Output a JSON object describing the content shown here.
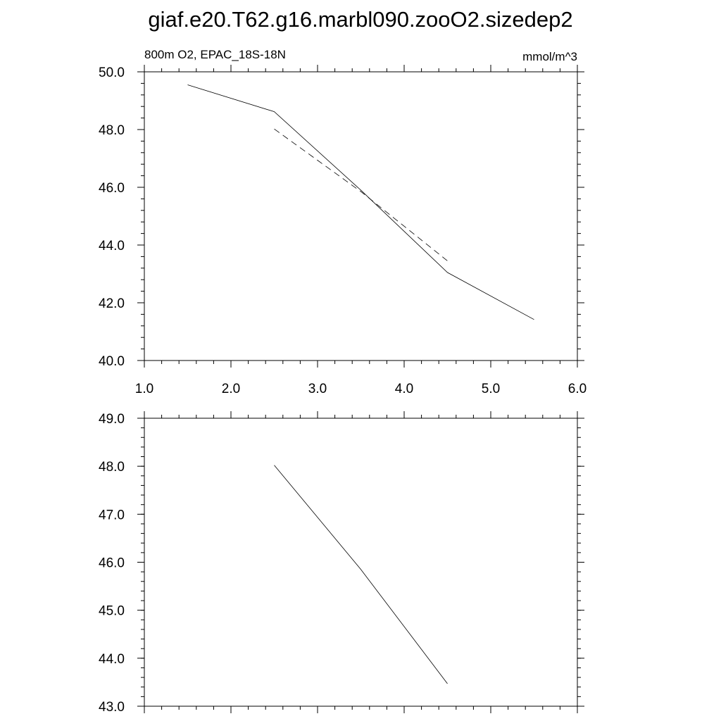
{
  "title": "giaf.e20.T62.g16.marbl090.zooO2.sizedep2",
  "chart_data": [
    {
      "type": "line",
      "left_label": "800m O2, EPAC_18S-18N",
      "right_label": "mmol/m^3",
      "xlim": [
        1.0,
        6.0
      ],
      "ylim": [
        40.0,
        50.0
      ],
      "xticks": [
        1.0,
        2.0,
        3.0,
        4.0,
        5.0,
        6.0
      ],
      "yticks": [
        40.0,
        42.0,
        44.0,
        46.0,
        48.0,
        50.0
      ],
      "xtick_labels": [
        "1.0",
        "2.0",
        "3.0",
        "4.0",
        "5.0",
        "6.0"
      ],
      "ytick_labels": [
        "40.0",
        "42.0",
        "44.0",
        "46.0",
        "48.0",
        "50.0"
      ],
      "x_minor_step": 0.2,
      "y_minor_step": 0.4,
      "series": [
        {
          "style": "solid",
          "x": [
            1.5,
            2.5,
            3.5,
            4.5,
            5.5
          ],
          "y": [
            49.55,
            48.62,
            45.9,
            43.05,
            41.42
          ]
        },
        {
          "style": "dashed",
          "x": [
            2.5,
            3.5,
            4.5
          ],
          "y": [
            48.02,
            45.85,
            43.45
          ]
        }
      ]
    },
    {
      "type": "line",
      "xlim": [
        1.0,
        6.0
      ],
      "ylim": [
        43.0,
        49.0
      ],
      "xticks": [
        1.0,
        2.0,
        3.0,
        4.0,
        5.0,
        6.0
      ],
      "yticks": [
        43.0,
        44.0,
        45.0,
        46.0,
        47.0,
        48.0,
        49.0
      ],
      "ytick_labels": [
        "43.0",
        "44.0",
        "45.0",
        "46.0",
        "47.0",
        "48.0",
        "49.0"
      ],
      "x_minor_step": 0.2,
      "y_minor_step": 0.2,
      "series": [
        {
          "style": "solid",
          "x": [
            2.5,
            3.5,
            4.5
          ],
          "y": [
            48.02,
            45.85,
            43.47
          ]
        }
      ]
    }
  ]
}
